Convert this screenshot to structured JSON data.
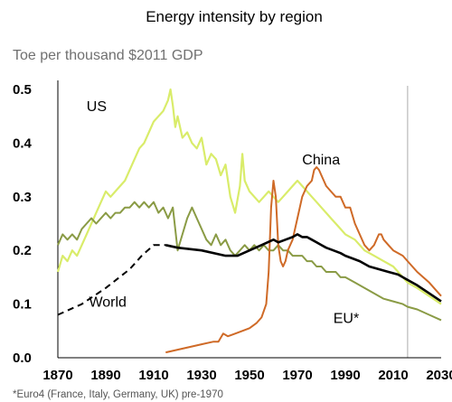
{
  "chart_data": {
    "type": "line",
    "title": "Energy intensity by region",
    "ylabel": "Toe per thousand $2011 GDP",
    "xlabel": "",
    "xlim": [
      1870,
      2030
    ],
    "ylim": [
      0,
      0.5
    ],
    "x_ticks": [
      "1870",
      "1890",
      "1910",
      "1930",
      "1950",
      "1970",
      "1990",
      "2010",
      "2030"
    ],
    "y_ticks": [
      "0.0",
      "0.1",
      "0.2",
      "0.3",
      "0.4",
      "0.5"
    ],
    "grid": false,
    "reference_line_x": 2016,
    "footnote": "*Euro4 (France, Italy, Germany, UK) pre-1970",
    "colors": {
      "US": "#d9ec6a",
      "EU*": "#8a9b45",
      "World": "#000000",
      "China": "#cf6a27",
      "axis": "#000000",
      "reference": "#aaaaaa"
    },
    "series": [
      {
        "name": "US",
        "projection_from": 2016,
        "x": [
          1870,
          1872,
          1874,
          1876,
          1878,
          1880,
          1882,
          1884,
          1886,
          1888,
          1890,
          1892,
          1894,
          1896,
          1898,
          1900,
          1902,
          1904,
          1906,
          1908,
          1910,
          1912,
          1914,
          1916,
          1917,
          1918,
          1919,
          1920,
          1922,
          1924,
          1926,
          1928,
          1930,
          1932,
          1934,
          1936,
          1938,
          1940,
          1942,
          1944,
          1946,
          1947,
          1948,
          1950,
          1952,
          1954,
          1956,
          1958,
          1960,
          1962,
          1964,
          1966,
          1968,
          1970,
          1972,
          1974,
          1976,
          1978,
          1980,
          1982,
          1984,
          1986,
          1988,
          1990,
          1994,
          1998,
          2002,
          2006,
          2010,
          2014,
          2016,
          2020,
          2025,
          2030
        ],
        "values": [
          0.16,
          0.19,
          0.18,
          0.2,
          0.19,
          0.21,
          0.23,
          0.25,
          0.27,
          0.29,
          0.31,
          0.3,
          0.31,
          0.32,
          0.33,
          0.35,
          0.37,
          0.39,
          0.4,
          0.42,
          0.44,
          0.45,
          0.46,
          0.48,
          0.5,
          0.47,
          0.43,
          0.45,
          0.41,
          0.42,
          0.4,
          0.39,
          0.41,
          0.36,
          0.38,
          0.37,
          0.34,
          0.36,
          0.3,
          0.27,
          0.32,
          0.38,
          0.33,
          0.31,
          0.3,
          0.29,
          0.3,
          0.31,
          0.3,
          0.29,
          0.3,
          0.31,
          0.32,
          0.33,
          0.32,
          0.31,
          0.3,
          0.29,
          0.28,
          0.27,
          0.26,
          0.25,
          0.24,
          0.23,
          0.22,
          0.2,
          0.19,
          0.18,
          0.17,
          0.15,
          0.14,
          0.13,
          0.115,
          0.1
        ]
      },
      {
        "name": "EU*",
        "projection_from": 2016,
        "x": [
          1870,
          1872,
          1874,
          1876,
          1878,
          1880,
          1882,
          1884,
          1886,
          1888,
          1890,
          1892,
          1894,
          1896,
          1898,
          1900,
          1902,
          1904,
          1906,
          1908,
          1910,
          1912,
          1914,
          1916,
          1918,
          1920,
          1922,
          1924,
          1926,
          1928,
          1930,
          1932,
          1934,
          1936,
          1938,
          1940,
          1942,
          1944,
          1946,
          1948,
          1950,
          1952,
          1954,
          1956,
          1958,
          1960,
          1962,
          1964,
          1966,
          1968,
          1970,
          1972,
          1974,
          1976,
          1978,
          1980,
          1982,
          1984,
          1986,
          1988,
          1990,
          1994,
          1998,
          2002,
          2006,
          2010,
          2014,
          2016,
          2020,
          2025,
          2030
        ],
        "values": [
          0.21,
          0.23,
          0.22,
          0.23,
          0.22,
          0.24,
          0.25,
          0.26,
          0.25,
          0.26,
          0.27,
          0.26,
          0.27,
          0.27,
          0.28,
          0.28,
          0.29,
          0.28,
          0.29,
          0.28,
          0.29,
          0.27,
          0.28,
          0.26,
          0.28,
          0.2,
          0.23,
          0.26,
          0.28,
          0.26,
          0.24,
          0.22,
          0.21,
          0.23,
          0.21,
          0.22,
          0.2,
          0.19,
          0.2,
          0.21,
          0.2,
          0.21,
          0.2,
          0.21,
          0.2,
          0.2,
          0.21,
          0.2,
          0.2,
          0.19,
          0.19,
          0.19,
          0.18,
          0.18,
          0.17,
          0.17,
          0.16,
          0.16,
          0.16,
          0.15,
          0.15,
          0.14,
          0.13,
          0.12,
          0.11,
          0.105,
          0.1,
          0.095,
          0.09,
          0.08,
          0.07
        ]
      },
      {
        "name": "World",
        "dashed_until": 1915,
        "projection_from": 2016,
        "x": [
          1870,
          1880,
          1890,
          1900,
          1905,
          1910,
          1915,
          1920,
          1930,
          1940,
          1945,
          1950,
          1955,
          1960,
          1962,
          1965,
          1968,
          1970,
          1972,
          1974,
          1976,
          1978,
          1980,
          1982,
          1985,
          1988,
          1990,
          1993,
          1996,
          2000,
          2004,
          2008,
          2012,
          2016,
          2020,
          2025,
          2030
        ],
        "values": [
          0.08,
          0.1,
          0.13,
          0.165,
          0.19,
          0.21,
          0.21,
          0.205,
          0.2,
          0.19,
          0.19,
          0.2,
          0.21,
          0.22,
          0.215,
          0.22,
          0.225,
          0.23,
          0.225,
          0.225,
          0.22,
          0.215,
          0.21,
          0.205,
          0.2,
          0.195,
          0.19,
          0.185,
          0.18,
          0.17,
          0.165,
          0.16,
          0.155,
          0.145,
          0.135,
          0.12,
          0.105
        ]
      },
      {
        "name": "China",
        "projection_from": 2016,
        "x": [
          1915,
          1920,
          1925,
          1930,
          1935,
          1937,
          1939,
          1941,
          1944,
          1947,
          1950,
          1953,
          1955,
          1957,
          1958,
          1959,
          1960,
          1961,
          1962,
          1963,
          1964,
          1965,
          1966,
          1967,
          1968,
          1970,
          1972,
          1974,
          1976,
          1977,
          1978,
          1979,
          1980,
          1982,
          1984,
          1986,
          1988,
          1990,
          1992,
          1994,
          1996,
          1998,
          2000,
          2002,
          2004,
          2005,
          2006,
          2008,
          2010,
          2014,
          2016,
          2020,
          2025,
          2030
        ],
        "values": [
          0.01,
          0.015,
          0.02,
          0.025,
          0.03,
          0.03,
          0.045,
          0.04,
          0.045,
          0.05,
          0.055,
          0.065,
          0.075,
          0.1,
          0.16,
          0.28,
          0.33,
          0.3,
          0.21,
          0.18,
          0.17,
          0.18,
          0.2,
          0.21,
          0.22,
          0.26,
          0.3,
          0.32,
          0.33,
          0.35,
          0.355,
          0.35,
          0.34,
          0.32,
          0.31,
          0.3,
          0.3,
          0.28,
          0.28,
          0.25,
          0.23,
          0.21,
          0.2,
          0.21,
          0.23,
          0.23,
          0.22,
          0.21,
          0.2,
          0.19,
          0.18,
          0.16,
          0.14,
          0.115
        ]
      }
    ],
    "annotations": [
      {
        "text": "US",
        "x": 1882,
        "y": 0.46
      },
      {
        "text": "China",
        "x": 1972,
        "y": 0.36
      },
      {
        "text": "World",
        "x": 1883,
        "y": 0.095
      },
      {
        "text": "EU*",
        "x": 1985,
        "y": 0.065
      }
    ]
  }
}
